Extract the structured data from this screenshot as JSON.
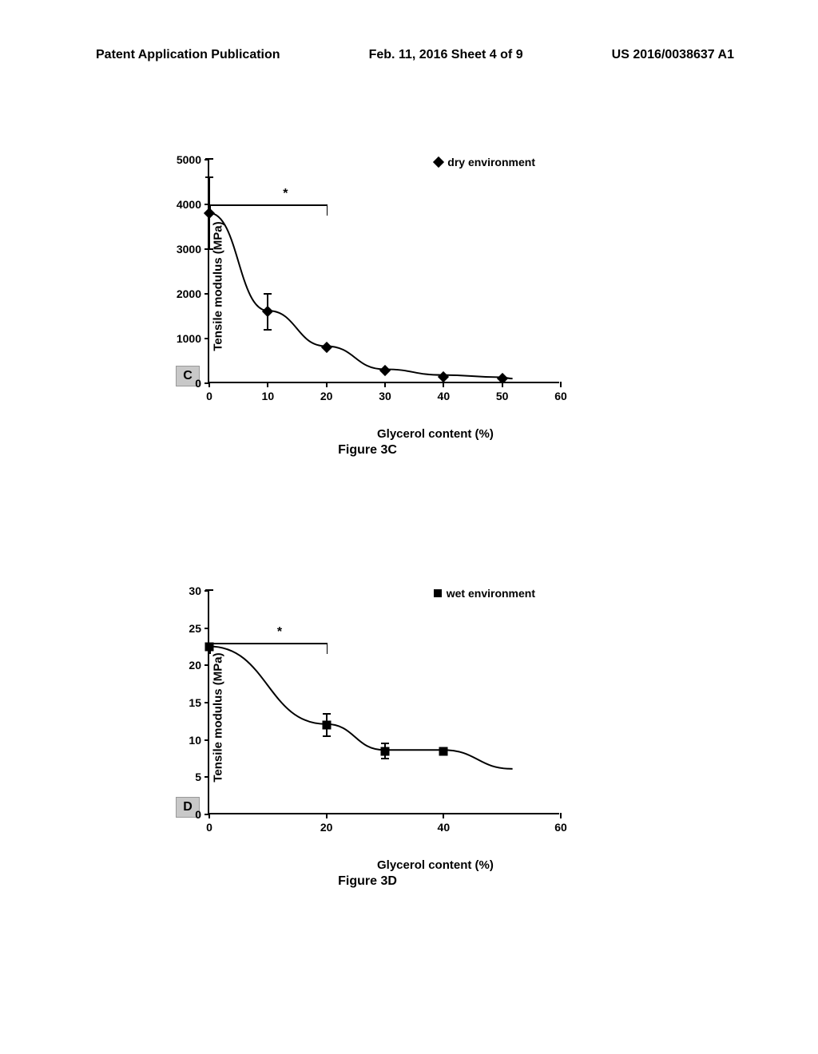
{
  "header": {
    "left": "Patent Application Publication",
    "center": "Feb. 11, 2016  Sheet 4 of 9",
    "right": "US 2016/0038637 A1"
  },
  "chart_c": {
    "type": "line",
    "panel_label": "C",
    "caption": "Figure 3C",
    "y_label": "Tensile modulus (MPa)",
    "x_label": "Glycerol content (%)",
    "legend_text": "dry environment",
    "legend_marker": "diamond",
    "y_ticks": [
      0,
      1000,
      2000,
      3000,
      4000,
      5000
    ],
    "x_ticks": [
      0,
      10,
      20,
      30,
      40,
      50,
      60
    ],
    "ylim": [
      0,
      5000
    ],
    "xlim": [
      0,
      60
    ],
    "marker": "diamond",
    "series_color": "#000000",
    "background_color": "#ffffff",
    "data": [
      {
        "x": 0,
        "y": 3800,
        "err": 800
      },
      {
        "x": 10,
        "y": 1600,
        "err": 400
      },
      {
        "x": 20,
        "y": 800,
        "err": 0
      },
      {
        "x": 30,
        "y": 280,
        "err": 0
      },
      {
        "x": 40,
        "y": 150,
        "err": 0
      },
      {
        "x": 50,
        "y": 100,
        "err": 0
      }
    ],
    "sig_line": {
      "x1": 0,
      "x2": 20,
      "y": 4000,
      "star_x": 13
    }
  },
  "chart_d": {
    "type": "line",
    "panel_label": "D",
    "caption": "Figure 3D",
    "y_label": "Tensile modulus (MPa)",
    "x_label": "Glycerol content (%)",
    "legend_text": "wet environment",
    "legend_marker": "square",
    "y_ticks": [
      0,
      5,
      10,
      15,
      20,
      25,
      30
    ],
    "x_ticks": [
      0,
      20,
      40,
      60
    ],
    "ylim": [
      0,
      30
    ],
    "xlim": [
      0,
      60
    ],
    "marker": "square",
    "series_color": "#000000",
    "background_color": "#ffffff",
    "data": [
      {
        "x": 0,
        "y": 22.5,
        "err": 0
      },
      {
        "x": 20,
        "y": 12,
        "err": 1.5
      },
      {
        "x": 30,
        "y": 8.5,
        "err": 1
      },
      {
        "x": 40,
        "y": 8.5,
        "err": 0
      }
    ],
    "sig_line": {
      "x1": 0,
      "x2": 20,
      "y": 23,
      "star_x": 12
    }
  }
}
